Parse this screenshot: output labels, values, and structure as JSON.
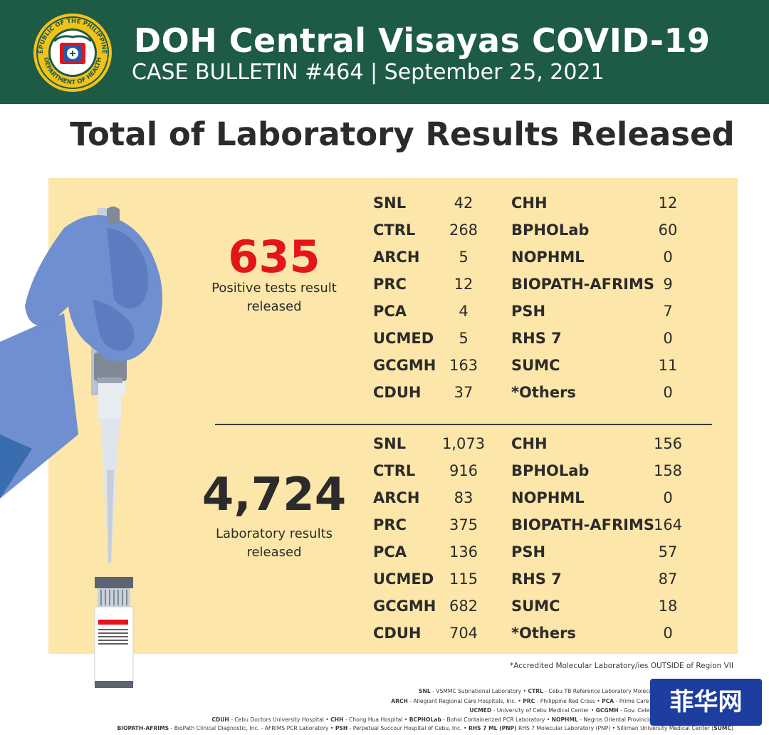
{
  "header": {
    "seal_text_top": "REPUBLIC OF THE PHILIPPINES",
    "seal_text_bottom": "DEPARTMENT OF HEALTH",
    "title": "DOH Central Visayas COVID-19",
    "subtitle": "CASE BULLETIN #464 | September 25, 2021"
  },
  "page_title": "Total of Laboratory Results Released",
  "positive": {
    "total": "635",
    "label_line1": "Positive tests result",
    "label_line2": "released",
    "left": [
      {
        "name": "SNL",
        "value": "42"
      },
      {
        "name": "CTRL",
        "value": "268"
      },
      {
        "name": "ARCH",
        "value": "5"
      },
      {
        "name": "PRC",
        "value": "12"
      },
      {
        "name": "PCA",
        "value": "4"
      },
      {
        "name": "UCMED",
        "value": "5"
      },
      {
        "name": "GCGMH",
        "value": "163"
      },
      {
        "name": "CDUH",
        "value": "37"
      }
    ],
    "right": [
      {
        "name": "CHH",
        "value": "12"
      },
      {
        "name": "BPHOLab",
        "value": "60"
      },
      {
        "name": "NOPHML",
        "value": "0"
      },
      {
        "name": "BIOPATH-AFRIMS",
        "value": "9"
      },
      {
        "name": "PSH",
        "value": "7"
      },
      {
        "name": "RHS 7",
        "value": "0"
      },
      {
        "name": "SUMC",
        "value": "11"
      },
      {
        "name": "*Others",
        "value": "0"
      }
    ]
  },
  "laboratory": {
    "total": "4,724",
    "label_line1": "Laboratory results",
    "label_line2": "released",
    "left": [
      {
        "name": "SNL",
        "value": "1,073"
      },
      {
        "name": "CTRL",
        "value": "916"
      },
      {
        "name": "ARCH",
        "value": "83"
      },
      {
        "name": "PRC",
        "value": "375"
      },
      {
        "name": "PCA",
        "value": "136"
      },
      {
        "name": "UCMED",
        "value": "115"
      },
      {
        "name": "GCGMH",
        "value": "682"
      },
      {
        "name": "CDUH",
        "value": "704"
      }
    ],
    "right": [
      {
        "name": "CHH",
        "value": "156"
      },
      {
        "name": "BPHOLab",
        "value": "158"
      },
      {
        "name": "NOPHML",
        "value": "0"
      },
      {
        "name": "BIOPATH-AFRIMS",
        "value": "164"
      },
      {
        "name": "PSH",
        "value": "57"
      },
      {
        "name": "RHS 7",
        "value": "87"
      },
      {
        "name": "SUMC",
        "value": "18"
      },
      {
        "name": "*Others",
        "value": "0"
      }
    ]
  },
  "footnote": "*Accredited Molecular Laboratory/ies OUTSIDE of Region VII",
  "legend": {
    "line1": [
      {
        "abbr": "SNL",
        "text": " - VSMMC Subnational Laboratory • "
      },
      {
        "abbr": "CTRL",
        "text": " - Cebu TB Reference Laboratory Molecular"
      }
    ],
    "line2": [
      {
        "abbr": "ARCH",
        "text": " - Allegiant Regional Care Hospitals, Inc. • "
      },
      {
        "abbr": "PRC",
        "text": " - Philippine Red Cross • "
      },
      {
        "abbr": "PCA",
        "text": " - Prime Care Alp"
      }
    ],
    "line3": [
      {
        "abbr": "UCMED",
        "text": " - University of Cebu Medical Center • "
      },
      {
        "abbr": "GCGMH",
        "text": " - Gov. Celestin"
      }
    ],
    "line4": [
      {
        "abbr": "CDUH",
        "text": " - Cebu Doctors University Hospital • "
      },
      {
        "abbr": "CHH",
        "text": " - Chong Hua Hospital • "
      },
      {
        "abbr": "BCPHOLab",
        "text": " - Bohol Containerized PCR Laboratory • "
      },
      {
        "abbr": "NOPHML",
        "text": " - Negros Oriental Provincial H"
      }
    ],
    "line5": [
      {
        "abbr": "BIOPATH-AFRIMS",
        "text": " - BioPath Clinical Diagnostic, Inc. - AFRIMS PCR Laboratory • "
      },
      {
        "abbr": "PSH",
        "text": " - Perpetual Succour Hospital of Cebu, Inc. • "
      },
      {
        "abbr": "RHS 7 ML (PNP)",
        "text": " RHS 7 Molecular Laboratory (PNP) • Silliman University Medical Center ("
      },
      {
        "abbr": "SUMC",
        "text": ")"
      }
    ]
  },
  "watermark": "菲华网",
  "colors": {
    "header_bg": "#1e5b45",
    "panel_bg": "#fde6a9",
    "positive_red": "#e3151b",
    "glove_blue": "#6f8fd0",
    "watermark_bg": "#1d3ea0"
  }
}
